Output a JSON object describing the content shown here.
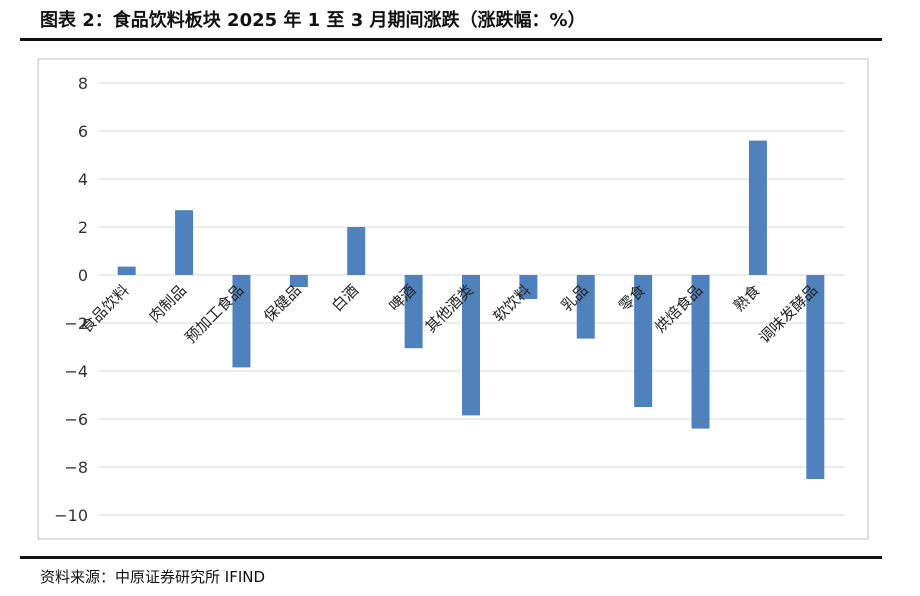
{
  "header": {
    "title": "图表 2：食品饮料板块 2025 年 1 至 3 月期间涨跌（涨跌幅：%）"
  },
  "footer": {
    "source": "资料来源：中原证券研究所   IFIND"
  },
  "colors": {
    "bar": "#4f81bd",
    "grid": "#d9d9d9",
    "frame": "#bfbfbf"
  },
  "chart_data": {
    "type": "bar",
    "categories": [
      "食品饮料",
      "肉制品",
      "预加工食品",
      "保健品",
      "白酒",
      "啤酒",
      "其他酒类",
      "软饮料",
      "乳品",
      "零食",
      "烘焙食品",
      "熟食",
      "调味发酵品"
    ],
    "values": [
      0.35,
      2.7,
      -3.85,
      -0.5,
      2.0,
      -3.05,
      -5.85,
      -1.0,
      -2.65,
      -5.5,
      -6.4,
      5.6,
      -8.5
    ],
    "ylim": [
      -10,
      8
    ],
    "yticks": [
      8,
      6,
      4,
      2,
      0,
      -2,
      -4,
      -6,
      -8,
      -10
    ],
    "ytick_labels": [
      "8",
      "6",
      "4",
      "2",
      "0",
      "−2",
      "−4",
      "−6",
      "−8",
      "−10"
    ],
    "grid": true,
    "legend": false,
    "xlabel": "",
    "ylabel": ""
  }
}
